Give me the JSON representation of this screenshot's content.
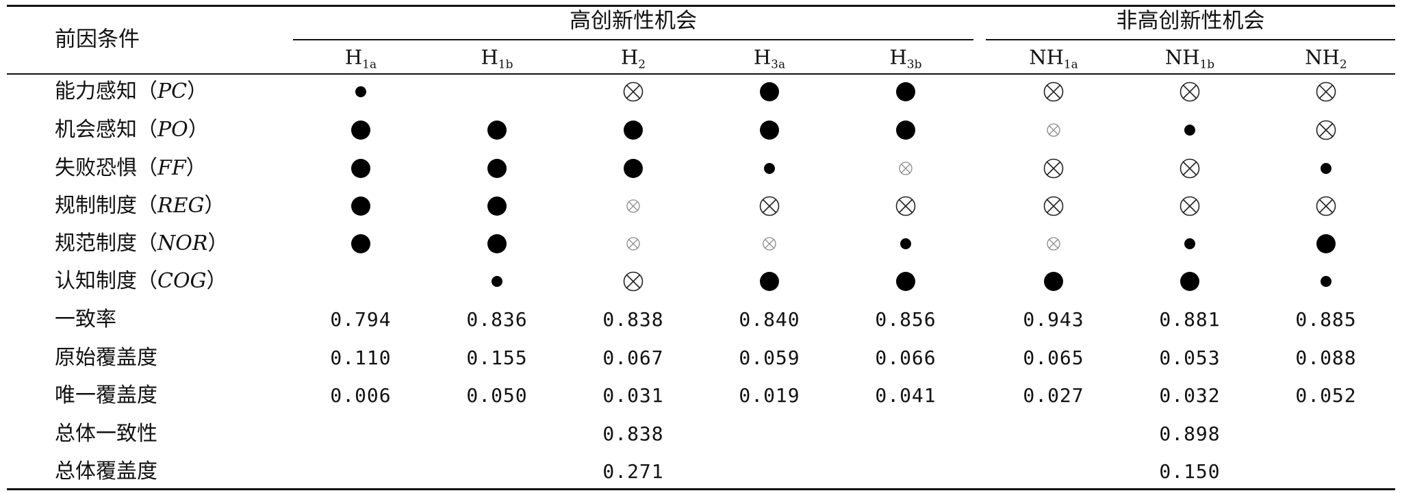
{
  "table": {
    "corner_header": "前因条件",
    "groups": [
      {
        "label": "高创新性机会"
      },
      {
        "label": "非高创新性机会"
      }
    ],
    "columns": [
      {
        "base": "H",
        "sub": "1a"
      },
      {
        "base": "H",
        "sub": "1b"
      },
      {
        "base": "H",
        "sub": "2"
      },
      {
        "base": "H",
        "sub": "3a"
      },
      {
        "base": "H",
        "sub": "3b"
      },
      {
        "base": "NH",
        "sub": "1a"
      },
      {
        "base": "NH",
        "sub": "1b"
      },
      {
        "base": "NH",
        "sub": "2"
      }
    ],
    "condition_rows": [
      {
        "label": "能力感知",
        "abbr": "PC",
        "cells": [
          "core-small",
          "",
          "absent-large",
          "core-large",
          "core-large",
          "absent-large",
          "absent-large",
          "absent-large"
        ]
      },
      {
        "label": "机会感知",
        "abbr": "PO",
        "cells": [
          "core-large",
          "core-large",
          "core-large",
          "core-large",
          "core-large",
          "absent-small",
          "core-small",
          "absent-large"
        ]
      },
      {
        "label": "失败恐惧",
        "abbr": "FF",
        "cells": [
          "core-large",
          "core-large",
          "core-large",
          "core-small",
          "absent-small",
          "absent-large",
          "absent-large",
          "core-small"
        ]
      },
      {
        "label": "规制制度",
        "abbr": "REG",
        "cells": [
          "core-large",
          "core-large",
          "absent-small",
          "absent-large",
          "absent-large",
          "absent-large",
          "absent-large",
          "absent-large"
        ]
      },
      {
        "label": "规范制度",
        "abbr": "NOR",
        "cells": [
          "core-large",
          "core-large",
          "absent-small",
          "absent-small",
          "core-small",
          "absent-small",
          "core-small",
          "core-large"
        ]
      },
      {
        "label": "认知制度",
        "abbr": "COG",
        "cells": [
          "",
          "core-small",
          "absent-large",
          "core-large",
          "core-large",
          "core-large",
          "core-large",
          "core-small"
        ]
      }
    ],
    "metric_rows": [
      {
        "label": "一致率",
        "values": [
          "0.794",
          "0.836",
          "0.838",
          "0.840",
          "0.856",
          "0.943",
          "0.881",
          "0.885"
        ]
      },
      {
        "label": "原始覆盖度",
        "values": [
          "0.110",
          "0.155",
          "0.067",
          "0.059",
          "0.066",
          "0.065",
          "0.053",
          "0.088"
        ]
      },
      {
        "label": "唯一覆盖度",
        "values": [
          "0.006",
          "0.050",
          "0.031",
          "0.019",
          "0.041",
          "0.027",
          "0.032",
          "0.052"
        ]
      }
    ],
    "overall_rows": [
      {
        "label": "总体一致性",
        "values": [
          "0.838",
          "0.898"
        ]
      },
      {
        "label": "总体覆盖度",
        "values": [
          "0.271",
          "0.150"
        ]
      }
    ]
  }
}
